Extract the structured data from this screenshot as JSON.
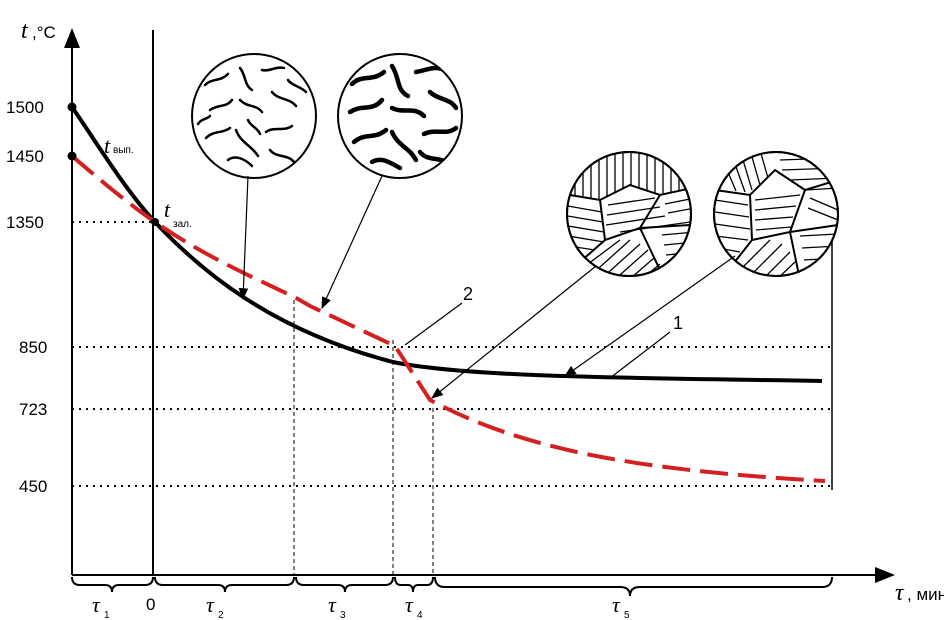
{
  "chart_data": {
    "type": "line",
    "y_axis": {
      "symbol": "t",
      "unit": ",°C",
      "range": [
        0,
        1750
      ],
      "ticks": [
        "1500",
        "1450",
        "1350",
        "850",
        "723",
        "450"
      ]
    },
    "x_axis": {
      "symbol": "τ",
      "unit": ", мин",
      "zero_label": "0"
    },
    "intervals": [
      {
        "symbol": "τ",
        "sub": "1"
      },
      {
        "symbol": "τ",
        "sub": "2"
      },
      {
        "symbol": "τ",
        "sub": "3"
      },
      {
        "symbol": "τ",
        "sub": "4"
      },
      {
        "symbol": "τ",
        "sub": "5"
      }
    ],
    "annotations": {
      "t_pour_symbol": "t",
      "t_pour_sub": "зал.",
      "t_release_symbol": "t",
      "t_release_sub": "вып."
    },
    "series": [
      {
        "name": "1",
        "style": "solid",
        "color": "#000000",
        "description_points": [
          [
            -1,
            1500
          ],
          [
            0,
            1350
          ],
          [
            3.3,
            850
          ],
          [
            9,
            790
          ]
        ]
      },
      {
        "name": "2",
        "style": "dashed",
        "color": "#d42020",
        "description_points": [
          [
            -1,
            1450
          ],
          [
            0,
            1350
          ],
          [
            1.9,
            1000
          ],
          [
            3,
            870
          ],
          [
            3.5,
            723
          ],
          [
            9,
            460
          ]
        ]
      }
    ]
  }
}
